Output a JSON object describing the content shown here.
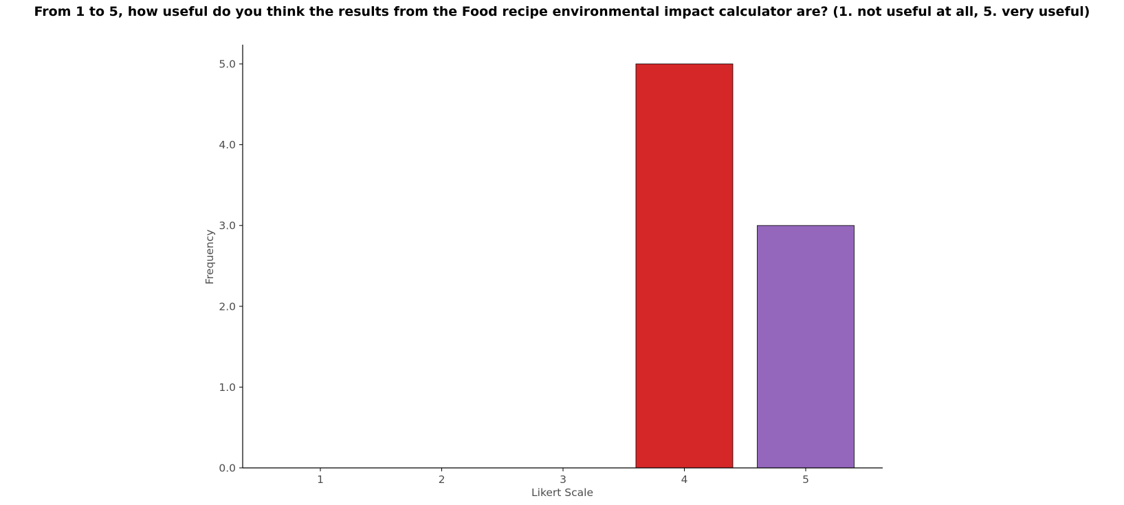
{
  "chart_data": {
    "type": "bar",
    "title": "From 1 to 5, how useful do you think the results from the Food recipe environmental impact calculator are? (1. not useful at all, 5. very useful)",
    "xlabel": "Likert Scale",
    "ylabel": "Frequency",
    "categories": [
      "1",
      "2",
      "3",
      "4",
      "5"
    ],
    "values": [
      0,
      0,
      0,
      5,
      3
    ],
    "colors": [
      "#1f77b4",
      "#ff7f0e",
      "#2ca02c",
      "#d62728",
      "#9467bd"
    ],
    "y_ticks": [
      "0.0",
      "1.0",
      "2.0",
      "3.0",
      "4.0",
      "5.0"
    ],
    "ylim": [
      0,
      5.25
    ],
    "grid": false,
    "legend": "none"
  }
}
